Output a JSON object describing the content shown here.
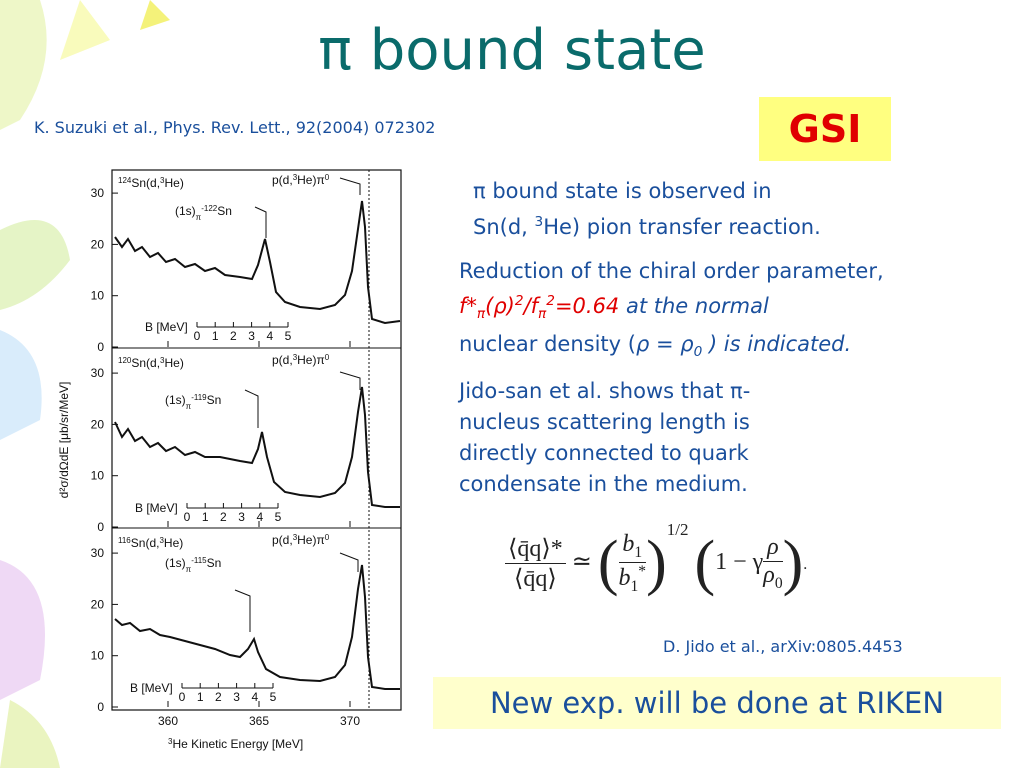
{
  "title": "π bound state",
  "reference": "K. Suzuki et al., Phys. Rev. Lett., 92(2004) 072302",
  "badge": "GSI",
  "para1": [
    "π bound state is observed in",
    "Sn(d, ",
    "3",
    "He) pion transfer reaction."
  ],
  "para2": [
    "Reduction of the chiral order parameter,",
    "f*",
    "π",
    "(",
    "ρ",
    ")",
    "2",
    "/f",
    "π",
    "2",
    "=0.64",
    " at the normal",
    "nuclear density (",
    "ρ = ρ",
    "0",
    " ) is indicated."
  ],
  "para3": [
    "Jido-san et al. shows that π-",
    "nucleus scattering length is",
    "directly connected to quark",
    "condensate in the medium."
  ],
  "formula": {
    "numerator": "⟨q̄q⟩*",
    "denominator": "⟨q̄q⟩",
    "relation": "≃",
    "b_num": "b",
    "b_num_sub": "1",
    "b_den": "b",
    "b_den_sub": "1",
    "b_den_sup": "*",
    "exponent": "1/2",
    "bracket": "1 − γ",
    "rho_num": "ρ",
    "rho_den": "ρ",
    "rho_den_sub": "0",
    "end": "."
  },
  "citation": "D. Jido et al., arXiv:0805.4453",
  "footer": "New exp. will be done at RIKEN",
  "figure": {
    "ylabel": "d²σ/dΩdE [μb/sr/MeV]",
    "xlabel": [
      "3",
      "He Kinetic Energy [MeV]"
    ],
    "yticks": [
      0,
      10,
      20,
      30
    ],
    "xticks": [
      360,
      365,
      370
    ],
    "b_label": "B [MeV]",
    "b_ticks": [
      0,
      1,
      2,
      3,
      4,
      5
    ],
    "panels": [
      {
        "target": [
          "124",
          "Sn(d,",
          "3",
          "He)"
        ],
        "state": [
          "(1s)",
          "π",
          "-",
          "122",
          "Sn"
        ],
        "product": [
          "p(d,",
          "3",
          "He)π",
          "0"
        ]
      },
      {
        "target": [
          "120",
          "Sn(d,",
          "3",
          "He)"
        ],
        "state": [
          "(1s)",
          "π",
          "-",
          "119",
          "Sn"
        ],
        "product": [
          "p(d,",
          "3",
          "He)π",
          "0"
        ]
      },
      {
        "target": [
          "116",
          "Sn(d,",
          "3",
          "He)"
        ],
        "state": [
          "(1s)",
          "π",
          "-",
          "115",
          "Sn"
        ],
        "product": [
          "p(d,",
          "3",
          "He)π",
          "0"
        ]
      }
    ]
  }
}
